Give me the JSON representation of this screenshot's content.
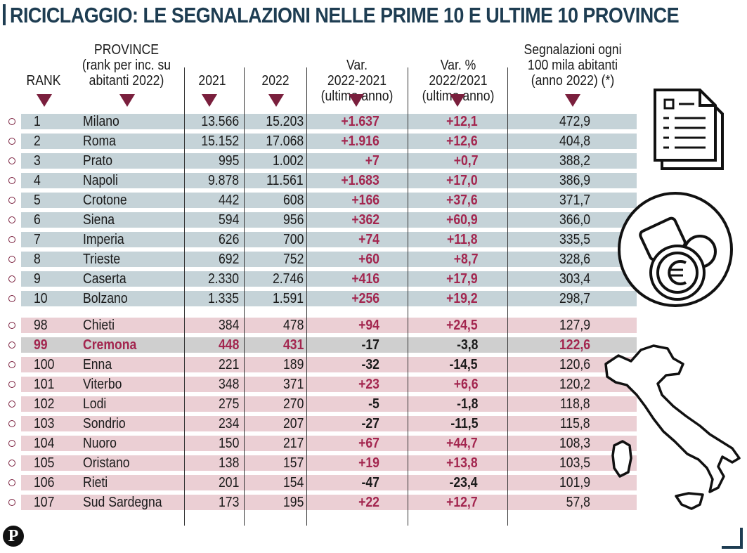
{
  "title": "RICICLAGGIO: LE SEGNALAZIONI NELLE PRIME 10 E ULTIME 10 PROVINCE",
  "headers": {
    "rank": "RANK",
    "province": [
      "PROVINCE",
      "(rank per inc. su",
      "abitanti 2022)"
    ],
    "y2021": "2021",
    "y2022": "2022",
    "var": [
      "Var.",
      "2022-2021",
      "(ultimo anno)"
    ],
    "varpct": [
      "Var. %",
      "2022/2021",
      "(ultimo anno)"
    ],
    "per100k": [
      "Segnalazioni ogni",
      "100 mila abitanti",
      "(anno 2022) (*)"
    ]
  },
  "colors": {
    "title": "#1e3d52",
    "accent": "#a3264f",
    "top_rows": "#c5d3d8",
    "bottom_rows": "#ebcfd4",
    "highlight_row": "#cfcfcf"
  },
  "chart_data": {
    "type": "table",
    "columns": [
      "RANK",
      "PROVINCE",
      "2021",
      "2022",
      "Var. 2022-2021",
      "Var. % 2022/2021",
      "Segnalazioni ogni 100 mila abitanti"
    ],
    "rows": [
      {
        "rank": "1",
        "province": "Milano",
        "y2021": "13.566",
        "y2022": "15.203",
        "var": "+1.637",
        "varpct": "+12,1",
        "per100k": "472,9",
        "group": "top"
      },
      {
        "rank": "2",
        "province": "Roma",
        "y2021": "15.152",
        "y2022": "17.068",
        "var": "+1.916",
        "varpct": "+12,6",
        "per100k": "404,8",
        "group": "top"
      },
      {
        "rank": "3",
        "province": "Prato",
        "y2021": "995",
        "y2022": "1.002",
        "var": "+7",
        "varpct": "+0,7",
        "per100k": "388,2",
        "group": "top"
      },
      {
        "rank": "4",
        "province": "Napoli",
        "y2021": "9.878",
        "y2022": "11.561",
        "var": "+1.683",
        "varpct": "+17,0",
        "per100k": "386,9",
        "group": "top"
      },
      {
        "rank": "5",
        "province": "Crotone",
        "y2021": "442",
        "y2022": "608",
        "var": "+166",
        "varpct": "+37,6",
        "per100k": "371,7",
        "group": "top"
      },
      {
        "rank": "6",
        "province": "Siena",
        "y2021": "594",
        "y2022": "956",
        "var": "+362",
        "varpct": "+60,9",
        "per100k": "366,0",
        "group": "top"
      },
      {
        "rank": "7",
        "province": "Imperia",
        "y2021": "626",
        "y2022": "700",
        "var": "+74",
        "varpct": "+11,8",
        "per100k": "335,5",
        "group": "top"
      },
      {
        "rank": "8",
        "province": "Trieste",
        "y2021": "692",
        "y2022": "752",
        "var": "+60",
        "varpct": "+8,7",
        "per100k": "328,6",
        "group": "top"
      },
      {
        "rank": "9",
        "province": "Caserta",
        "y2021": "2.330",
        "y2022": "2.746",
        "var": "+416",
        "varpct": "+17,9",
        "per100k": "303,4",
        "group": "top"
      },
      {
        "rank": "10",
        "province": "Bolzano",
        "y2021": "1.335",
        "y2022": "1.591",
        "var": "+256",
        "varpct": "+19,2",
        "per100k": "298,7",
        "group": "top"
      },
      {
        "rank": "98",
        "province": "Chieti",
        "y2021": "384",
        "y2022": "478",
        "var": "+94",
        "varpct": "+24,5",
        "per100k": "127,9",
        "group": "bottom"
      },
      {
        "rank": "99",
        "province": "Cremona",
        "y2021": "448",
        "y2022": "431",
        "var": "-17",
        "varpct": "-3,8",
        "per100k": "122,6",
        "group": "highlight"
      },
      {
        "rank": "100",
        "province": "Enna",
        "y2021": "221",
        "y2022": "189",
        "var": "-32",
        "varpct": "-14,5",
        "per100k": "120,6",
        "group": "bottom"
      },
      {
        "rank": "101",
        "province": "Viterbo",
        "y2021": "348",
        "y2022": "371",
        "var": "+23",
        "varpct": "+6,6",
        "per100k": "120,2",
        "group": "bottom"
      },
      {
        "rank": "102",
        "province": "Lodi",
        "y2021": "275",
        "y2022": "270",
        "var": "-5",
        "varpct": "-1,8",
        "per100k": "118,8",
        "group": "bottom"
      },
      {
        "rank": "103",
        "province": "Sondrio",
        "y2021": "234",
        "y2022": "207",
        "var": "-27",
        "varpct": "-11,5",
        "per100k": "115,8",
        "group": "bottom"
      },
      {
        "rank": "104",
        "province": "Nuoro",
        "y2021": "150",
        "y2022": "217",
        "var": "+67",
        "varpct": "+44,7",
        "per100k": "108,3",
        "group": "bottom"
      },
      {
        "rank": "105",
        "province": "Oristano",
        "y2021": "138",
        "y2022": "157",
        "var": "+19",
        "varpct": "+13,8",
        "per100k": "103,5",
        "group": "bottom"
      },
      {
        "rank": "106",
        "province": "Rieti",
        "y2021": "201",
        "y2022": "154",
        "var": "-47",
        "varpct": "-23,4",
        "per100k": "101,9",
        "group": "bottom"
      },
      {
        "rank": "107",
        "province": "Sud Sardegna",
        "y2021": "173",
        "y2022": "195",
        "var": "+22",
        "varpct": "+12,7",
        "per100k": "57,8",
        "group": "bottom"
      }
    ]
  },
  "icons": {
    "document": "document-icon",
    "money": "money-icon",
    "map": "italy-map-icon",
    "logo": "publisher-logo-icon"
  },
  "logo_letter": "P"
}
